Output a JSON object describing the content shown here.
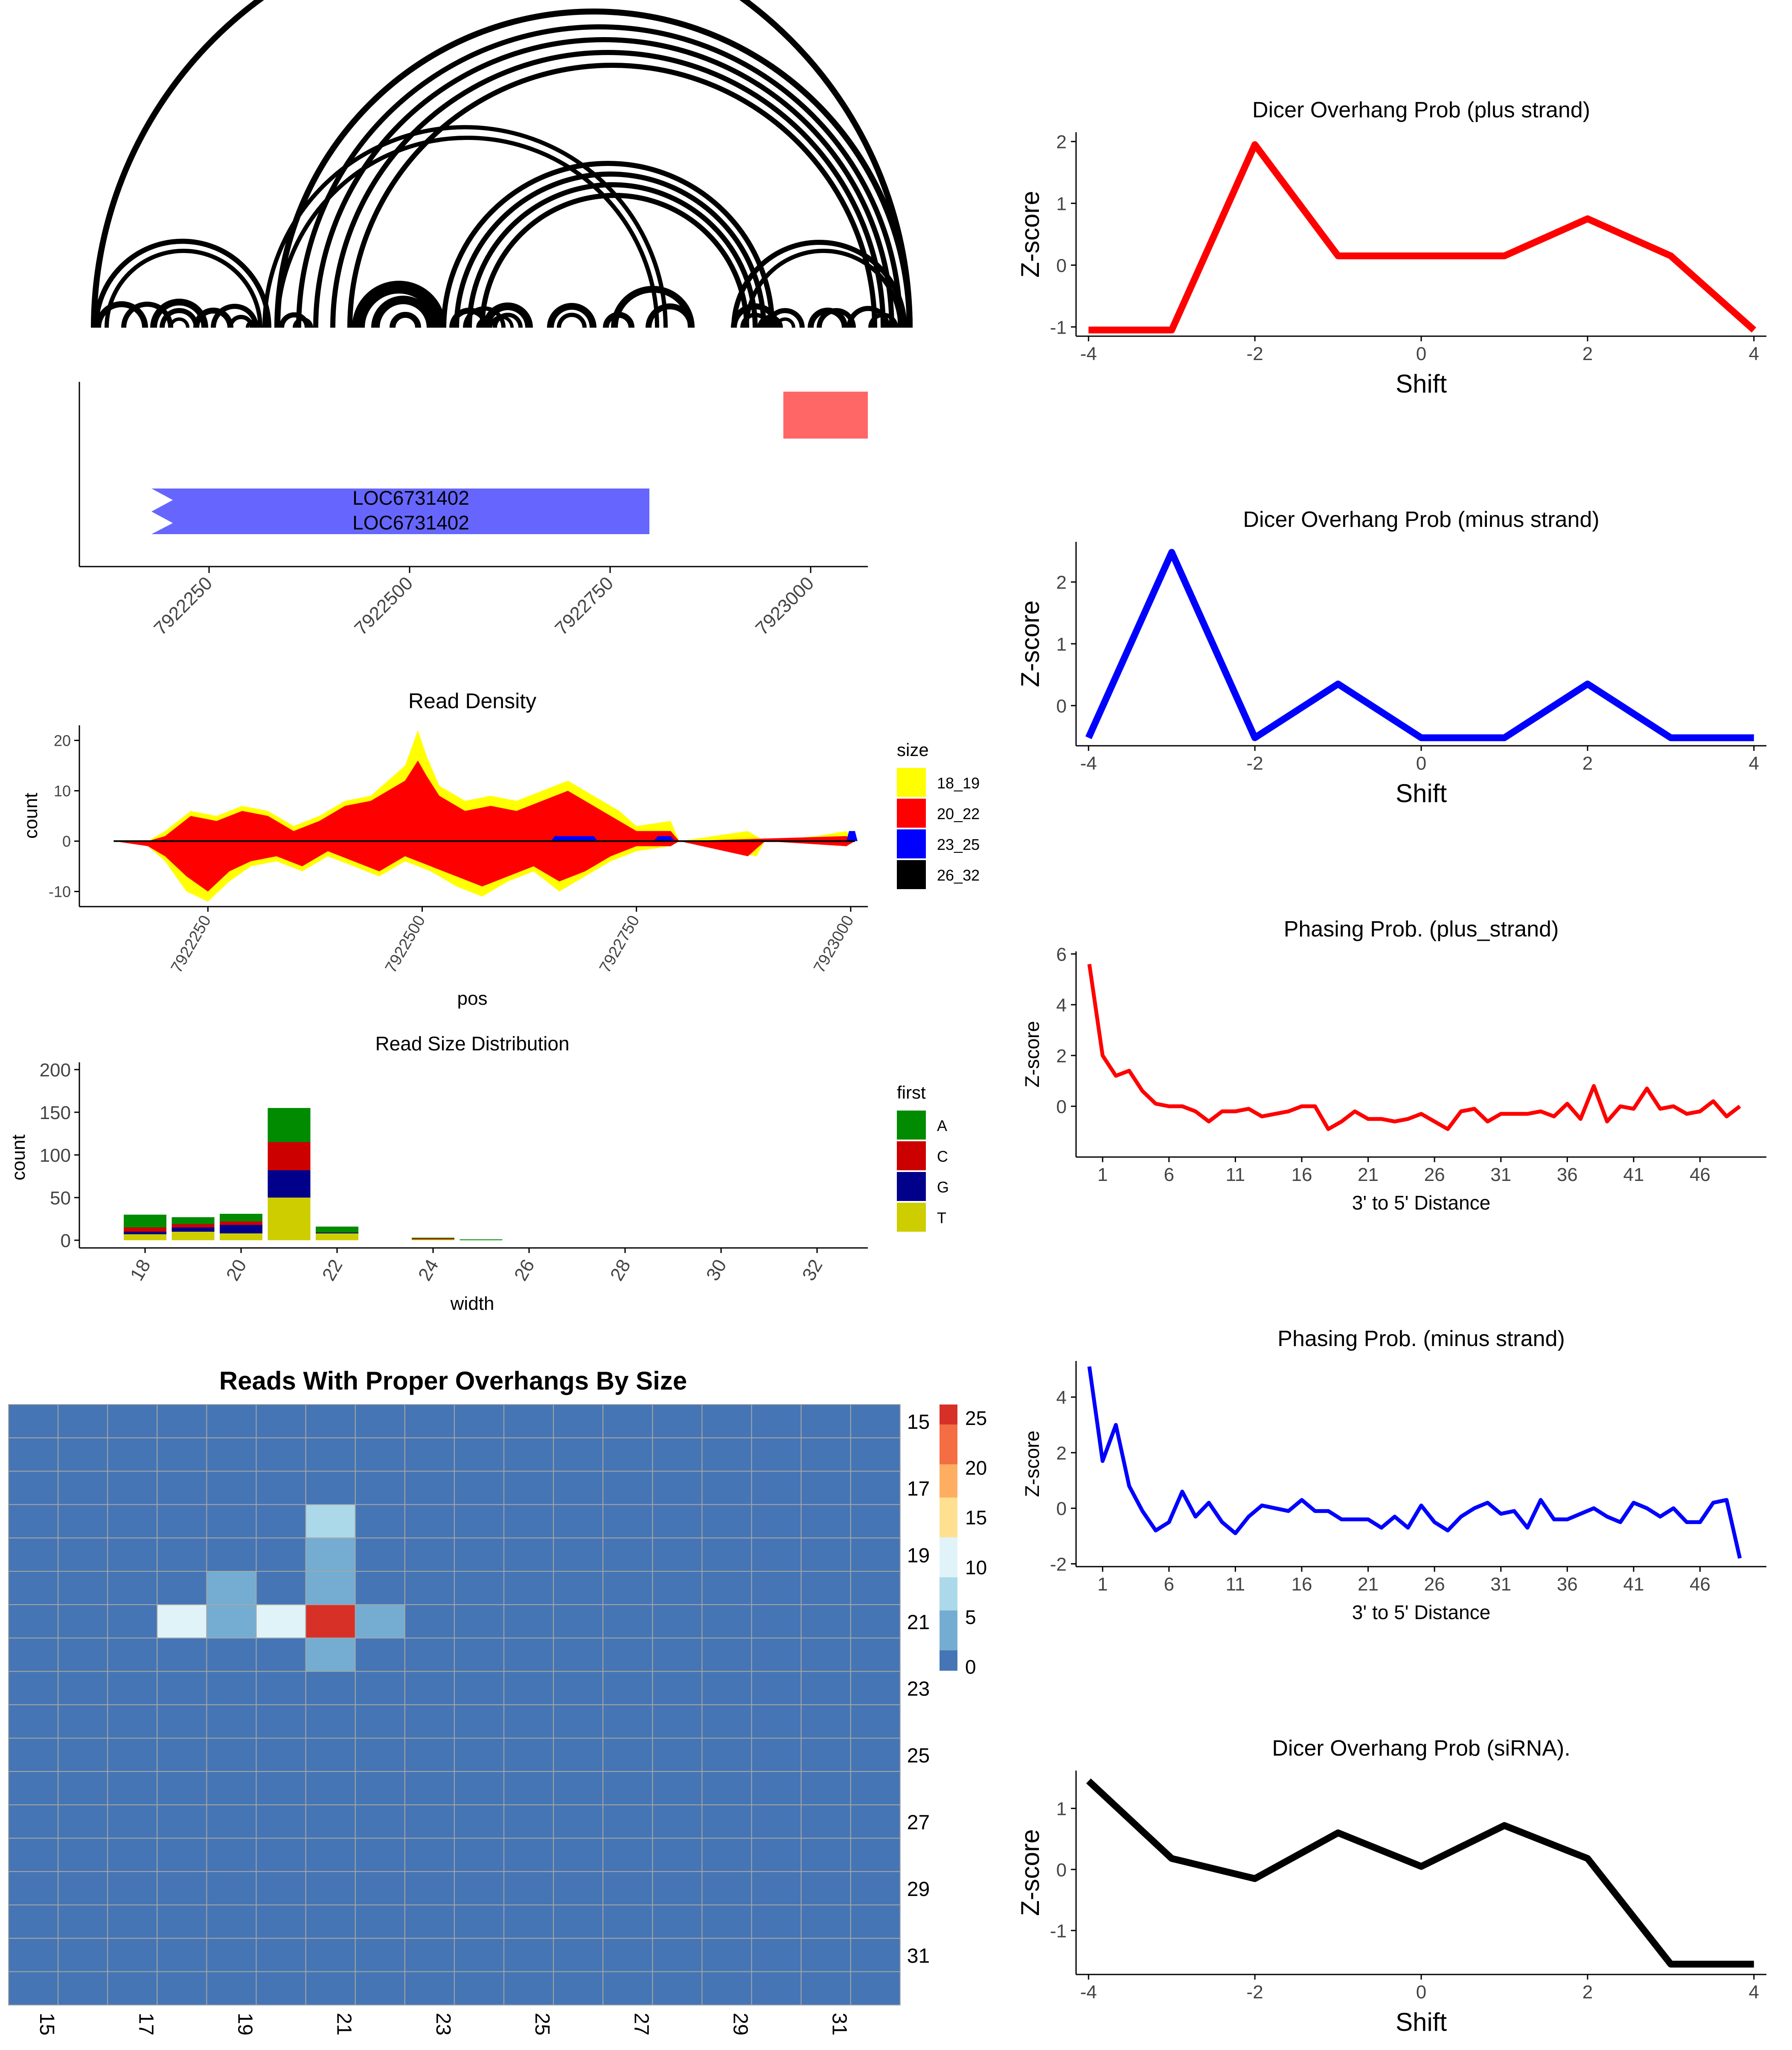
{
  "page": {
    "background": "#ffffff"
  },
  "arc_plot": {
    "description_free": true,
    "stroke": "#000000"
  },
  "gene_track": {
    "gene_label_1": "LOC6731402",
    "gene_label_2": "LOC6731402",
    "gene_color": "#6666ff",
    "feature_color": "#ff6666",
    "x_ticks": [
      "7922250",
      "7922500",
      "7922750",
      "7923000"
    ]
  },
  "chart_data": [
    {
      "id": "read_density",
      "type": "area",
      "title": "Read Density",
      "xlabel": "pos",
      "ylabel": "count",
      "xlim": [
        7922100,
        7923020
      ],
      "ylim": [
        -13,
        23
      ],
      "x_ticks": [
        7922250,
        7922500,
        7922750,
        7923000
      ],
      "y_ticks": [
        -10,
        0,
        10,
        20
      ],
      "legend_title": "size",
      "legend_position": "right",
      "series": [
        {
          "name": "18_19",
          "color": "#ffff00"
        },
        {
          "name": "20_22",
          "color": "#ff0000"
        },
        {
          "name": "23_25",
          "color": "#0000ff"
        },
        {
          "name": "26_32",
          "color": "#000000"
        }
      ],
      "plus_total": [
        [
          7922140,
          0
        ],
        [
          7922180,
          0
        ],
        [
          7922200,
          2
        ],
        [
          7922230,
          6
        ],
        [
          7922260,
          5
        ],
        [
          7922290,
          7
        ],
        [
          7922320,
          6
        ],
        [
          7922350,
          3
        ],
        [
          7922380,
          5
        ],
        [
          7922410,
          8
        ],
        [
          7922440,
          9
        ],
        [
          7922460,
          12
        ],
        [
          7922480,
          15
        ],
        [
          7922495,
          22
        ],
        [
          7922505,
          17
        ],
        [
          7922520,
          11
        ],
        [
          7922550,
          8
        ],
        [
          7922580,
          9
        ],
        [
          7922610,
          8
        ],
        [
          7922640,
          10
        ],
        [
          7922670,
          12
        ],
        [
          7922700,
          9
        ],
        [
          7922730,
          6
        ],
        [
          7922750,
          3
        ],
        [
          7922790,
          4
        ],
        [
          7922800,
          0
        ],
        [
          7922880,
          2
        ],
        [
          7922900,
          0
        ],
        [
          7922960,
          1
        ],
        [
          7922995,
          2
        ],
        [
          7923005,
          0
        ]
      ],
      "plus_red": [
        [
          7922140,
          0
        ],
        [
          7922180,
          0
        ],
        [
          7922200,
          1
        ],
        [
          7922230,
          5
        ],
        [
          7922260,
          4
        ],
        [
          7922290,
          6
        ],
        [
          7922320,
          5
        ],
        [
          7922350,
          2
        ],
        [
          7922380,
          4
        ],
        [
          7922410,
          7
        ],
        [
          7922440,
          8
        ],
        [
          7922460,
          10
        ],
        [
          7922480,
          12
        ],
        [
          7922495,
          16
        ],
        [
          7922505,
          13
        ],
        [
          7922520,
          9
        ],
        [
          7922550,
          6
        ],
        [
          7922580,
          7
        ],
        [
          7922610,
          6
        ],
        [
          7922640,
          8
        ],
        [
          7922670,
          10
        ],
        [
          7922700,
          7
        ],
        [
          7922730,
          4
        ],
        [
          7922750,
          2
        ],
        [
          7922790,
          2
        ],
        [
          7922800,
          0
        ],
        [
          7922995,
          1
        ],
        [
          7923005,
          0
        ]
      ],
      "minus_total": [
        [
          7922140,
          0
        ],
        [
          7922180,
          -1
        ],
        [
          7922200,
          -4
        ],
        [
          7922225,
          -10
        ],
        [
          7922250,
          -12
        ],
        [
          7922275,
          -8
        ],
        [
          7922300,
          -5
        ],
        [
          7922330,
          -4
        ],
        [
          7922360,
          -6
        ],
        [
          7922390,
          -3
        ],
        [
          7922420,
          -5
        ],
        [
          7922450,
          -7
        ],
        [
          7922480,
          -4
        ],
        [
          7922510,
          -6
        ],
        [
          7922540,
          -9
        ],
        [
          7922570,
          -11
        ],
        [
          7922600,
          -8
        ],
        [
          7922630,
          -6
        ],
        [
          7922660,
          -10
        ],
        [
          7922690,
          -7
        ],
        [
          7922720,
          -4
        ],
        [
          7922750,
          -2
        ],
        [
          7922790,
          -1
        ],
        [
          7922800,
          0
        ],
        [
          7922890,
          -3
        ],
        [
          7922900,
          0
        ],
        [
          7922995,
          -1
        ],
        [
          7923005,
          0
        ]
      ],
      "minus_red": [
        [
          7922140,
          0
        ],
        [
          7922180,
          -1
        ],
        [
          7922200,
          -3
        ],
        [
          7922225,
          -7
        ],
        [
          7922250,
          -10
        ],
        [
          7922275,
          -6
        ],
        [
          7922300,
          -4
        ],
        [
          7922330,
          -3
        ],
        [
          7922360,
          -5
        ],
        [
          7922390,
          -2
        ],
        [
          7922420,
          -4
        ],
        [
          7922450,
          -6
        ],
        [
          7922480,
          -3
        ],
        [
          7922510,
          -5
        ],
        [
          7922540,
          -7
        ],
        [
          7922570,
          -9
        ],
        [
          7922600,
          -7
        ],
        [
          7922630,
          -5
        ],
        [
          7922660,
          -8
        ],
        [
          7922690,
          -6
        ],
        [
          7922720,
          -3
        ],
        [
          7922750,
          -1
        ],
        [
          7922790,
          -1
        ],
        [
          7922800,
          0
        ],
        [
          7922880,
          -3
        ],
        [
          7922900,
          0
        ],
        [
          7922995,
          -1
        ],
        [
          7923005,
          0
        ]
      ],
      "plus_blue": [
        [
          7922650,
          0
        ],
        [
          7922655,
          1
        ],
        [
          7922700,
          1
        ],
        [
          7922705,
          0
        ],
        [
          7922770,
          0
        ],
        [
          7922775,
          1
        ],
        [
          7922790,
          1
        ],
        [
          7922795,
          0
        ],
        [
          7922995,
          0
        ],
        [
          7922998,
          2
        ],
        [
          7923005,
          2
        ],
        [
          7923008,
          0
        ]
      ]
    },
    {
      "id": "read_size_distribution",
      "type": "bar",
      "title": "Read Size Distribution",
      "xlabel": "width",
      "ylabel": "count",
      "ylim": [
        0,
        205
      ],
      "x_ticks": [
        18,
        20,
        22,
        24,
        26,
        28,
        30,
        32
      ],
      "y_ticks": [
        0,
        50,
        100,
        150,
        200
      ],
      "legend_title": "first",
      "legend_position": "right",
      "stack_order": [
        "T",
        "G",
        "C",
        "A"
      ],
      "series": [
        {
          "name": "A",
          "color": "#008b00"
        },
        {
          "name": "C",
          "color": "#cd0000"
        },
        {
          "name": "G",
          "color": "#00008b"
        },
        {
          "name": "T",
          "color": "#cdcd00"
        }
      ],
      "bars": [
        {
          "width": 18,
          "A": 15,
          "C": 5,
          "G": 3,
          "T": 7
        },
        {
          "width": 19,
          "A": 8,
          "C": 4,
          "G": 5,
          "T": 10
        },
        {
          "width": 20,
          "A": 9,
          "C": 4,
          "G": 10,
          "T": 8
        },
        {
          "width": 21,
          "A": 40,
          "C": 33,
          "G": 32,
          "T": 50
        },
        {
          "width": 22,
          "A": 7,
          "C": 0,
          "G": 1,
          "T": 8
        },
        {
          "width": 24,
          "A": 1,
          "C": 1,
          "G": 0,
          "T": 1
        },
        {
          "width": 25,
          "A": 1,
          "C": 0,
          "G": 0,
          "T": 0
        }
      ]
    },
    {
      "id": "overhang_heatmap",
      "type": "heatmap",
      "title": "Reads With Proper Overhangs By Size",
      "rows": [
        15,
        16,
        17,
        18,
        19,
        20,
        21,
        22,
        23,
        24,
        25,
        26,
        27,
        28,
        29,
        30,
        31,
        32
      ],
      "cols": [
        15,
        16,
        17,
        18,
        19,
        20,
        21,
        22,
        23,
        24,
        25,
        26,
        27,
        28,
        29,
        30,
        31,
        32
      ],
      "row_labels": [
        "15",
        "17",
        "19",
        "21",
        "23",
        "25",
        "27",
        "29",
        "31"
      ],
      "col_labels": [
        "15",
        "17",
        "19",
        "21",
        "23",
        "25",
        "27",
        "29",
        "31"
      ],
      "legend_ticks": [
        0,
        5,
        10,
        15,
        20,
        25
      ],
      "color_scale": [
        "#4575b4",
        "#74add1",
        "#abd9e9",
        "#e0f3f8",
        "#fee090",
        "#fdae61",
        "#f46d43",
        "#d73027"
      ],
      "cells": [
        {
          "row": 18,
          "col": 21,
          "value": 8
        },
        {
          "row": 19,
          "col": 21,
          "value": 5
        },
        {
          "row": 20,
          "col": 19,
          "value": 5
        },
        {
          "row": 20,
          "col": 21,
          "value": 5
        },
        {
          "row": 21,
          "col": 18,
          "value": 10
        },
        {
          "row": 21,
          "col": 19,
          "value": 5
        },
        {
          "row": 21,
          "col": 20,
          "value": 10
        },
        {
          "row": 21,
          "col": 21,
          "value": 26
        },
        {
          "row": 21,
          "col": 22,
          "value": 5
        },
        {
          "row": 22,
          "col": 21,
          "value": 5
        }
      ]
    },
    {
      "id": "dicer_plus",
      "type": "line",
      "title": "Dicer Overhang Prob (plus strand)",
      "xlabel": "Shift",
      "ylabel": "Z-score",
      "color": "#ff0000",
      "x": [
        -4,
        -3,
        -2,
        -1,
        0,
        1,
        2,
        3,
        4
      ],
      "y": [
        -1.05,
        -1.05,
        1.95,
        0.15,
        0.15,
        0.15,
        0.75,
        0.15,
        -1.05
      ],
      "xlim": [
        -4.15,
        4.15
      ],
      "ylim": [
        -1.15,
        2.15
      ],
      "x_ticks": [
        -4,
        -2,
        0,
        2,
        4
      ],
      "y_ticks": [
        -1,
        0,
        1,
        2
      ]
    },
    {
      "id": "dicer_minus",
      "type": "line",
      "title": "Dicer Overhang Prob (minus strand)",
      "xlabel": "Shift",
      "ylabel": "Z-score",
      "color": "#0000ff",
      "x": [
        -4,
        -3,
        -2,
        -1,
        0,
        1,
        2,
        3,
        4
      ],
      "y": [
        -0.52,
        2.48,
        -0.52,
        0.35,
        -0.52,
        -0.52,
        0.35,
        -0.52,
        -0.52
      ],
      "xlim": [
        -4.15,
        4.15
      ],
      "ylim": [
        -0.65,
        2.65
      ],
      "x_ticks": [
        -4,
        -2,
        0,
        2,
        4
      ],
      "y_ticks": [
        0,
        1,
        2
      ]
    },
    {
      "id": "phasing_plus",
      "type": "line",
      "title": "Phasing Prob. (plus_strand)",
      "xlabel": "3' to 5' Distance",
      "ylabel": "Z-score",
      "color": "#ff0000",
      "x": [
        0,
        1,
        2,
        3,
        4,
        5,
        6,
        7,
        8,
        9,
        10,
        11,
        12,
        13,
        14,
        15,
        16,
        17,
        18,
        19,
        20,
        21,
        22,
        23,
        24,
        25,
        26,
        27,
        28,
        29,
        30,
        31,
        32,
        33,
        34,
        35,
        36,
        37,
        38,
        39,
        40,
        41,
        42,
        43,
        44,
        45,
        46,
        47,
        48,
        49
      ],
      "y": [
        5.6,
        2.0,
        1.2,
        1.4,
        0.6,
        0.1,
        0.0,
        0.0,
        -0.2,
        -0.6,
        -0.2,
        -0.2,
        -0.1,
        -0.4,
        -0.3,
        -0.2,
        0.0,
        0.0,
        -0.9,
        -0.6,
        -0.2,
        -0.5,
        -0.5,
        -0.6,
        -0.5,
        -0.3,
        -0.6,
        -0.9,
        -0.2,
        -0.1,
        -0.6,
        -0.3,
        -0.3,
        -0.3,
        -0.2,
        -0.4,
        0.1,
        -0.5,
        0.8,
        -0.6,
        0.0,
        -0.1,
        0.7,
        -0.1,
        0.0,
        -0.3,
        -0.2,
        0.2,
        -0.4,
        0.0
      ],
      "xlim": [
        -1,
        51
      ],
      "ylim": [
        -2,
        6.1
      ],
      "x_ticks": [
        1,
        6,
        11,
        16,
        21,
        26,
        31,
        36,
        41,
        46
      ],
      "y_ticks": [
        0,
        2,
        4,
        6
      ]
    },
    {
      "id": "phasing_minus",
      "type": "line",
      "title": "Phasing Prob. (minus strand)",
      "xlabel": "3' to 5' Distance",
      "ylabel": "Z-score",
      "color": "#0000ff",
      "x": [
        0,
        1,
        2,
        3,
        4,
        5,
        6,
        7,
        8,
        9,
        10,
        11,
        12,
        13,
        14,
        15,
        16,
        17,
        18,
        19,
        20,
        21,
        22,
        23,
        24,
        25,
        26,
        27,
        28,
        29,
        30,
        31,
        32,
        33,
        34,
        35,
        36,
        37,
        38,
        39,
        40,
        41,
        42,
        43,
        44,
        45,
        46,
        47,
        48,
        49
      ],
      "y": [
        5.1,
        1.7,
        3.0,
        0.8,
        -0.1,
        -0.8,
        -0.5,
        0.6,
        -0.3,
        0.2,
        -0.5,
        -0.9,
        -0.3,
        0.1,
        0.0,
        -0.1,
        0.3,
        -0.1,
        -0.1,
        -0.4,
        -0.4,
        -0.4,
        -0.7,
        -0.3,
        -0.7,
        0.1,
        -0.5,
        -0.8,
        -0.3,
        0.0,
        0.2,
        -0.2,
        -0.1,
        -0.7,
        0.3,
        -0.4,
        -0.4,
        -0.2,
        0.0,
        -0.3,
        -0.5,
        0.2,
        0.0,
        -0.3,
        0.0,
        -0.5,
        -0.5,
        0.2,
        0.3,
        -1.8
      ],
      "xlim": [
        -1,
        51
      ],
      "ylim": [
        -2.1,
        5.3
      ],
      "x_ticks": [
        1,
        6,
        11,
        16,
        21,
        26,
        31,
        36,
        41,
        46
      ],
      "y_ticks": [
        -2,
        0,
        2,
        4
      ]
    },
    {
      "id": "dicer_sirna",
      "type": "line",
      "title": "Dicer Overhang Prob (siRNA).",
      "xlabel": "Shift",
      "ylabel": "Z-score",
      "color": "#000000",
      "x": [
        -4,
        -3,
        -2,
        -1,
        0,
        1,
        2,
        3,
        4
      ],
      "y": [
        1.45,
        0.18,
        -0.15,
        0.6,
        0.05,
        0.72,
        0.18,
        -1.55,
        -1.55
      ],
      "xlim": [
        -4.15,
        4.15
      ],
      "ylim": [
        -1.72,
        1.62
      ],
      "x_ticks": [
        -4,
        -2,
        0,
        2,
        4
      ],
      "y_ticks": [
        -1,
        0,
        1
      ]
    }
  ]
}
